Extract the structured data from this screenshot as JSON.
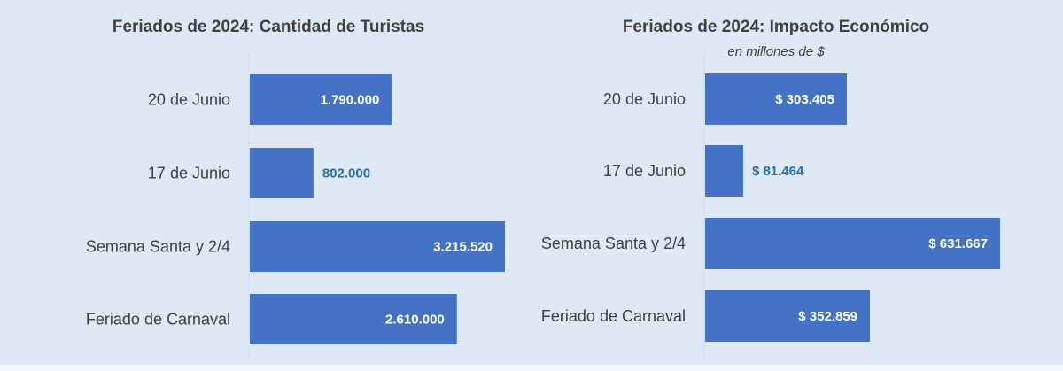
{
  "colors": {
    "background": "#dfe9f5",
    "bar": "#4472c4",
    "text": "#404040",
    "value_inside": "#ffffff",
    "value_outside": "#1f6fb4"
  },
  "chart_data": [
    {
      "type": "bar",
      "orientation": "horizontal",
      "title": "Feriados de 2024: Cantidad de Turistas",
      "subtitle": "",
      "categories": [
        "20 de Junio",
        "17 de Junio",
        "Semana Santa y 2/4",
        "Feriado de Carnaval"
      ],
      "values": [
        1790000,
        802000,
        3215520,
        2610000
      ],
      "value_labels": [
        "1.790.000",
        "802.000",
        "3.215.520",
        "2.610.000"
      ],
      "xlim": [
        0,
        3215520
      ],
      "grid": false
    },
    {
      "type": "bar",
      "orientation": "horizontal",
      "title": "Feriados de 2024: Impacto Económico",
      "subtitle": "en millones de $",
      "categories": [
        "20 de Junio",
        "17 de Junio",
        "Semana Santa y 2/4",
        "Feriado de Carnaval"
      ],
      "values": [
        303405,
        81464,
        631667,
        352859
      ],
      "value_labels": [
        "$ 303.405",
        "$ 81.464",
        "$ 631.667",
        "$ 352.859"
      ],
      "xlim": [
        0,
        631667
      ],
      "grid": false
    }
  ]
}
